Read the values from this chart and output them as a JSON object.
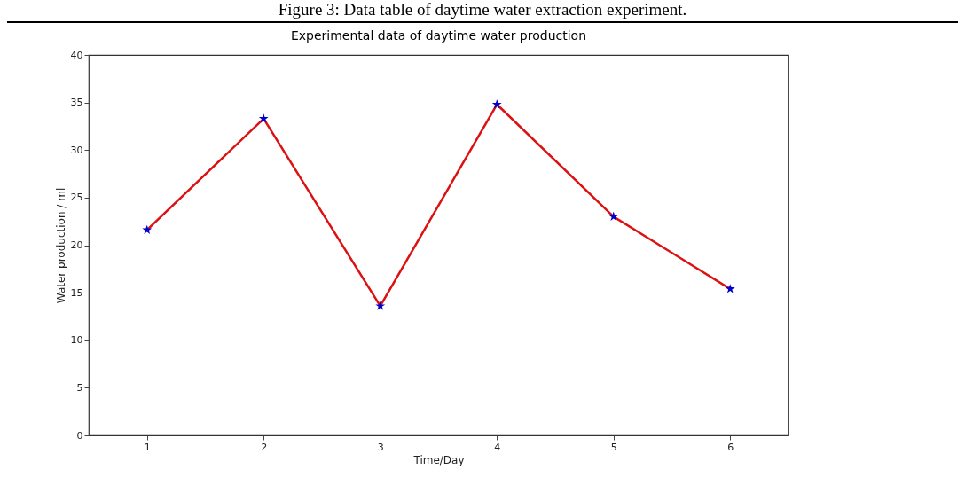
{
  "chart_data": {
    "type": "line",
    "title": "Experimental data of daytime water production",
    "xlabel": "Time/Day",
    "ylabel": "Water production / ml",
    "annotations": [
      "Figure 3: Data table of daytime water extraction experiment."
    ],
    "x": [
      1,
      2,
      3,
      4,
      5,
      6
    ],
    "series": [
      {
        "color": "#dd1111",
        "values": [
          21.6,
          33.3,
          13.6,
          34.8,
          23.0,
          15.4
        ]
      },
      {
        "type": "scatter",
        "color": "#0000cc",
        "marker": "star",
        "values": [
          21.6,
          33.3,
          13.6,
          34.8,
          23.0,
          15.4
        ]
      }
    ],
    "xlim": [
      0.5,
      6.5
    ],
    "xticks": [
      1,
      2,
      3,
      4,
      5,
      6
    ],
    "ylim": [
      0,
      40
    ],
    "yticks": [
      0,
      5,
      10,
      15,
      20,
      25,
      30,
      35,
      40
    ],
    "grid": false
  }
}
